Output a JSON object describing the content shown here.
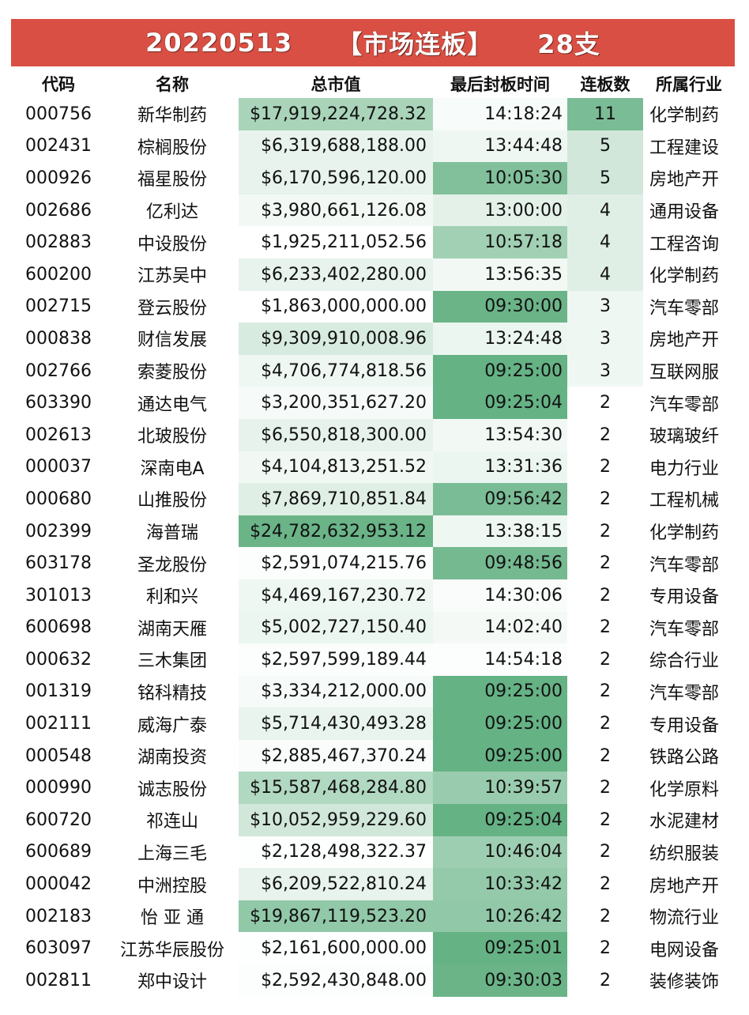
{
  "banner": {
    "date": "20220513",
    "title": "【市场连板】",
    "count": "28支"
  },
  "headers": [
    "代码",
    "名称",
    "总市值",
    "最后封板时间",
    "连板数",
    "所属行业"
  ],
  "rows": [
    {
      "code": "000756",
      "name": "新华制药",
      "cap": "$17,919,224,728.32",
      "time": "14:18:24",
      "boards": "11",
      "industry": "化学制药",
      "cap_shade": 0.55,
      "time_shade": 0.05,
      "board_shade": 0.85
    },
    {
      "code": "002431",
      "name": "棕榈股份",
      "cap": "$6,319,688,188.00",
      "time": "13:44:48",
      "boards": "5",
      "industry": "工程建设",
      "cap_shade": 0.15,
      "time_shade": 0.1,
      "board_shade": 0.3
    },
    {
      "code": "000926",
      "name": "福星股份",
      "cap": "$6,170,596,120.00",
      "time": "10:05:30",
      "boards": "5",
      "industry": "房地产开",
      "cap_shade": 0.15,
      "time_shade": 0.8,
      "board_shade": 0.3
    },
    {
      "code": "002686",
      "name": "亿利达",
      "cap": "$3,980,661,126.08",
      "time": "13:00:00",
      "boards": "4",
      "industry": "通用设备",
      "cap_shade": 0.08,
      "time_shade": 0.18,
      "board_shade": 0.2
    },
    {
      "code": "002883",
      "name": "中设股份",
      "cap": "$1,925,211,052.56",
      "time": "10:57:18",
      "boards": "4",
      "industry": "工程咨询",
      "cap_shade": 0.0,
      "time_shade": 0.6,
      "board_shade": 0.2
    },
    {
      "code": "600200",
      "name": "江苏吴中",
      "cap": "$6,233,402,280.00",
      "time": "13:56:35",
      "boards": "4",
      "industry": "化学制药",
      "cap_shade": 0.15,
      "time_shade": 0.08,
      "board_shade": 0.2
    },
    {
      "code": "002715",
      "name": "登云股份",
      "cap": "$1,863,000,000.00",
      "time": "09:30:00",
      "boards": "3",
      "industry": "汽车零部",
      "cap_shade": 0.0,
      "time_shade": 0.95,
      "board_shade": 0.1
    },
    {
      "code": "000838",
      "name": "财信发展",
      "cap": "$9,309,910,008.96",
      "time": "13:24:48",
      "boards": "3",
      "industry": "房地产开",
      "cap_shade": 0.25,
      "time_shade": 0.12,
      "board_shade": 0.1
    },
    {
      "code": "002766",
      "name": "索菱股份",
      "cap": "$4,706,774,818.56",
      "time": "09:25:00",
      "boards": "3",
      "industry": "互联网服",
      "cap_shade": 0.1,
      "time_shade": 0.98,
      "board_shade": 0.1
    },
    {
      "code": "603390",
      "name": "通达电气",
      "cap": "$3,200,351,627.20",
      "time": "09:25:04",
      "boards": "2",
      "industry": "汽车零部",
      "cap_shade": 0.06,
      "time_shade": 0.98,
      "board_shade": 0.0
    },
    {
      "code": "002613",
      "name": "北玻股份",
      "cap": "$6,550,818,300.00",
      "time": "13:54:30",
      "boards": "2",
      "industry": "玻璃玻纤",
      "cap_shade": 0.16,
      "time_shade": 0.08,
      "board_shade": 0.0
    },
    {
      "code": "000037",
      "name": "深南电A",
      "cap": "$4,104,813,251.52",
      "time": "13:31:36",
      "boards": "2",
      "industry": "电力行业",
      "cap_shade": 0.09,
      "time_shade": 0.12,
      "board_shade": 0.0
    },
    {
      "code": "000680",
      "name": "山推股份",
      "cap": "$7,869,710,851.84",
      "time": "09:56:42",
      "boards": "2",
      "industry": "工程机械",
      "cap_shade": 0.2,
      "time_shade": 0.85,
      "board_shade": 0.0
    },
    {
      "code": "002399",
      "name": "海普瑞",
      "cap": "$24,782,632,953.12",
      "time": "13:38:15",
      "boards": "2",
      "industry": "化学制药",
      "cap_shade": 0.95,
      "time_shade": 0.1,
      "board_shade": 0.0
    },
    {
      "code": "603178",
      "name": "圣龙股份",
      "cap": "$2,591,074,215.76",
      "time": "09:48:56",
      "boards": "2",
      "industry": "汽车零部",
      "cap_shade": 0.02,
      "time_shade": 0.88,
      "board_shade": 0.0
    },
    {
      "code": "301013",
      "name": "利和兴",
      "cap": "$4,469,167,230.72",
      "time": "14:30:06",
      "boards": "2",
      "industry": "专用设备",
      "cap_shade": 0.1,
      "time_shade": 0.04,
      "board_shade": 0.0
    },
    {
      "code": "600698",
      "name": "湖南天雁",
      "cap": "$5,002,727,150.40",
      "time": "14:02:40",
      "boards": "2",
      "industry": "汽车零部",
      "cap_shade": 0.12,
      "time_shade": 0.07,
      "board_shade": 0.0
    },
    {
      "code": "000632",
      "name": "三木集团",
      "cap": "$2,597,599,189.44",
      "time": "14:54:18",
      "boards": "2",
      "industry": "综合行业",
      "cap_shade": 0.02,
      "time_shade": 0.02,
      "board_shade": 0.0
    },
    {
      "code": "001319",
      "name": "铭科精技",
      "cap": "$3,334,212,000.00",
      "time": "09:25:00",
      "boards": "2",
      "industry": "汽车零部",
      "cap_shade": 0.06,
      "time_shade": 0.98,
      "board_shade": 0.0
    },
    {
      "code": "002111",
      "name": "威海广泰",
      "cap": "$5,714,430,493.28",
      "time": "09:25:00",
      "boards": "2",
      "industry": "专用设备",
      "cap_shade": 0.14,
      "time_shade": 0.98,
      "board_shade": 0.0
    },
    {
      "code": "000548",
      "name": "湖南投资",
      "cap": "$2,885,467,370.24",
      "time": "09:25:00",
      "boards": "2",
      "industry": "铁路公路",
      "cap_shade": 0.04,
      "time_shade": 0.98,
      "board_shade": 0.0
    },
    {
      "code": "000990",
      "name": "诚志股份",
      "cap": "$15,587,468,284.80",
      "time": "10:39:57",
      "boards": "2",
      "industry": "化学原料",
      "cap_shade": 0.5,
      "time_shade": 0.65,
      "board_shade": 0.0
    },
    {
      "code": "600720",
      "name": "祁连山",
      "cap": "$10,052,959,229.60",
      "time": "09:25:04",
      "boards": "2",
      "industry": "水泥建材",
      "cap_shade": 0.3,
      "time_shade": 0.98,
      "board_shade": 0.0
    },
    {
      "code": "600689",
      "name": "上海三毛",
      "cap": "$2,128,498,322.37",
      "time": "10:46:04",
      "boards": "2",
      "industry": "纺织服装",
      "cap_shade": 0.01,
      "time_shade": 0.62,
      "board_shade": 0.0
    },
    {
      "code": "000042",
      "name": "中洲控股",
      "cap": "$6,209,522,810.24",
      "time": "10:33:42",
      "boards": "2",
      "industry": "房地产开",
      "cap_shade": 0.15,
      "time_shade": 0.68,
      "board_shade": 0.0
    },
    {
      "code": "002183",
      "name": "怡 亚 通",
      "cap": "$19,867,119,523.20",
      "time": "10:26:42",
      "boards": "2",
      "industry": "物流行业",
      "cap_shade": 0.7,
      "time_shade": 0.7,
      "board_shade": 0.0
    },
    {
      "code": "603097",
      "name": "江苏华辰股份",
      "cap": "$2,161,600,000.00",
      "time": "09:25:01",
      "boards": "2",
      "industry": "电网设备",
      "cap_shade": 0.01,
      "time_shade": 0.98,
      "board_shade": 0.0
    },
    {
      "code": "002811",
      "name": "郑中设计",
      "cap": "$2,592,430,848.00",
      "time": "09:30:03",
      "boards": "2",
      "industry": "装修装饰",
      "cap_shade": 0.02,
      "time_shade": 0.95,
      "board_shade": 0.0
    }
  ]
}
